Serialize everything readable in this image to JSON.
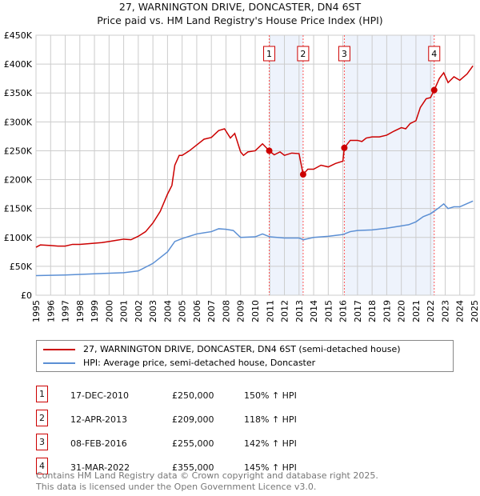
{
  "title": "27, WARNINGTON DRIVE, DONCASTER, DN4 6ST",
  "subtitle": "Price paid vs. HM Land Registry's House Price Index (HPI)",
  "chart_data": {
    "type": "line",
    "xlim": [
      1995,
      2025
    ],
    "ylim": [
      0,
      450000
    ],
    "y_ticks": [
      0,
      50000,
      100000,
      150000,
      200000,
      250000,
      300000,
      350000,
      400000,
      450000
    ],
    "y_tick_labels": [
      "£0",
      "£50K",
      "£100K",
      "£150K",
      "£200K",
      "£250K",
      "£300K",
      "£350K",
      "£400K",
      "£450K"
    ],
    "x_ticks": [
      1995,
      1996,
      1997,
      1998,
      1999,
      2000,
      2001,
      2002,
      2003,
      2004,
      2005,
      2006,
      2007,
      2008,
      2009,
      2010,
      2011,
      2012,
      2013,
      2014,
      2015,
      2016,
      2017,
      2018,
      2019,
      2020,
      2021,
      2022,
      2023,
      2024,
      2025
    ],
    "series": [
      {
        "name": "27, WARNINGTON DRIVE, DONCASTER, DN4 6ST (semi-detached house)",
        "color": "#cc0000",
        "x": [
          1995,
          1995.3,
          1996,
          1996.5,
          1997,
          1997.5,
          1998,
          1998.5,
          1999,
          1999.5,
          2000,
          2000.5,
          2001,
          2001.5,
          2002,
          2002.5,
          2003,
          2003.5,
          2004,
          2004.3,
          2004.5,
          2004.8,
          2005,
          2005.5,
          2006,
          2006.5,
          2007,
          2007.5,
          2007.9,
          2008.3,
          2008.6,
          2009,
          2009.2,
          2009.5,
          2010,
          2010.5,
          2010.96,
          2011.3,
          2011.7,
          2012,
          2012.5,
          2013,
          2013.28,
          2013.6,
          2014,
          2014.5,
          2015,
          2015.5,
          2016,
          2016.1,
          2016.5,
          2017,
          2017.3,
          2017.6,
          2018,
          2018.5,
          2019,
          2019.5,
          2020,
          2020.3,
          2020.6,
          2021,
          2021.3,
          2021.7,
          2022,
          2022.25,
          2022.6,
          2022.9,
          2023.2,
          2023.6,
          2024,
          2024.5,
          2024.9
        ],
        "y": [
          83000,
          87000,
          86000,
          85000,
          85000,
          88000,
          88000,
          89000,
          90000,
          91000,
          93000,
          95000,
          97000,
          96000,
          102000,
          110000,
          125000,
          145000,
          175000,
          190000,
          225000,
          242000,
          242000,
          250000,
          260000,
          270000,
          273000,
          285000,
          288000,
          272000,
          280000,
          248000,
          242000,
          248000,
          250000,
          262000,
          250000,
          243000,
          248000,
          242000,
          246000,
          245000,
          209000,
          218000,
          218000,
          225000,
          222000,
          228000,
          232000,
          255000,
          268000,
          268000,
          266000,
          272000,
          274000,
          274000,
          277000,
          284000,
          290000,
          288000,
          297000,
          302000,
          325000,
          340000,
          342000,
          355000,
          375000,
          385000,
          368000,
          378000,
          372000,
          383000,
          397000
        ]
      },
      {
        "name": "HPI: Average price, semi-detached house, Doncaster",
        "color": "#5b8fd4",
        "x": [
          1995,
          1997,
          1999,
          2001,
          2002,
          2003,
          2004,
          2004.5,
          2005,
          2006,
          2007,
          2007.5,
          2008,
          2008.5,
          2009,
          2010,
          2010.5,
          2011,
          2012,
          2013,
          2013.3,
          2014,
          2015,
          2016,
          2016.5,
          2017,
          2018,
          2019,
          2020,
          2020.5,
          2021,
          2021.5,
          2022,
          2022.5,
          2022.9,
          2023.2,
          2023.6,
          2024,
          2024.9
        ],
        "y": [
          34000,
          35000,
          37000,
          39000,
          42000,
          55000,
          75000,
          93000,
          98000,
          106000,
          110000,
          115000,
          114000,
          112000,
          100000,
          101000,
          106000,
          101000,
          99000,
          99000,
          96000,
          100000,
          102000,
          105000,
          110000,
          112000,
          113000,
          116000,
          120000,
          122000,
          127000,
          136000,
          141000,
          150000,
          158000,
          150000,
          153000,
          153000,
          163000
        ]
      }
    ],
    "sales": [
      {
        "label": "1",
        "x": 2010.96,
        "date": "17-DEC-2010",
        "price": 250000,
        "price_label": "£250,000",
        "hpi": "150% ↑ HPI"
      },
      {
        "label": "2",
        "x": 2013.28,
        "date": "12-APR-2013",
        "price": 209000,
        "price_label": "£209,000",
        "hpi": "118% ↑ HPI"
      },
      {
        "label": "3",
        "x": 2016.1,
        "date": "08-FEB-2016",
        "price": 255000,
        "price_label": "£255,000",
        "hpi": "142% ↑ HPI"
      },
      {
        "label": "4",
        "x": 2022.25,
        "date": "31-MAR-2022",
        "price": 355000,
        "price_label": "£355,000",
        "hpi": "145% ↑ HPI"
      }
    ],
    "grid": true,
    "legend": "bottom"
  },
  "legend": {
    "red": "27, WARNINGTON DRIVE, DONCASTER, DN4 6ST (semi-detached house)",
    "blue": "HPI: Average price, semi-detached house, Doncaster"
  },
  "footer": {
    "line1": "Contains HM Land Registry data © Crown copyright and database right 2025.",
    "line2": "This data is licensed under the Open Government Licence v3.0."
  }
}
